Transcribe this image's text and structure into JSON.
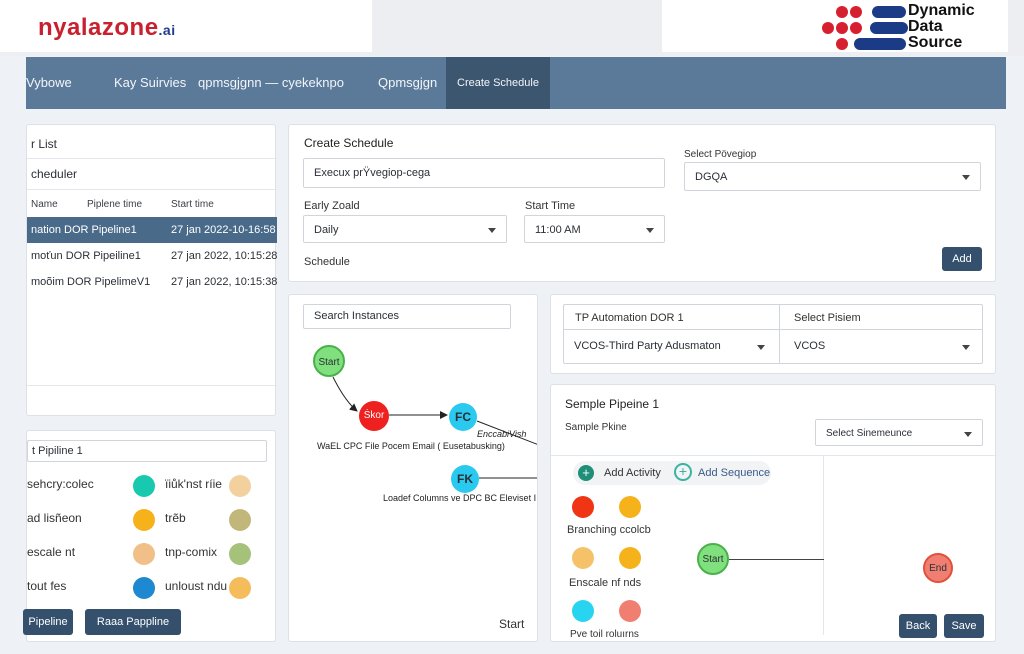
{
  "brand": {
    "name": "nyalazone",
    "tld": ".ai",
    "partner_words": [
      "Dynamic",
      "Data",
      "Source"
    ]
  },
  "nav": {
    "items": [
      "Vybowe",
      "Kay Suirvies",
      "qpmsgjgnn — cyekeknpo",
      "Qpmsgjgn",
      "Create Schedule"
    ]
  },
  "list_panel": {
    "title": "r List",
    "subtitle": "cheduler",
    "columns": [
      "Name",
      "Piplene time",
      "Start time"
    ],
    "rows": [
      {
        "name": "nation DOR Pipeline1",
        "time": "27 jan 2022-10-16:58",
        "selected": true
      },
      {
        "name": "moťun DOR Pipeiline1",
        "time": "27 jan 2022, 10:15:28",
        "selected": false
      },
      {
        "name": "moõim DOR PipelimeV1",
        "time": "27 jan 2022, 10:15:38",
        "selected": false
      }
    ]
  },
  "create_schedule": {
    "title": "Create Schedule",
    "name_value": "Execux prŸvegiop-cega",
    "select_label": "Select Pövegiop",
    "select_value": "DGQA",
    "freq_label": "Early Zoald",
    "freq_value": "Daily",
    "time_label": "Start Time",
    "time_value": "11:00 AM",
    "schedule_label": "Schedule",
    "add_label": "Add"
  },
  "pipeline_panel": {
    "input_value": "t Pipiline 1",
    "items_left": [
      "sehcry:colec",
      "ad lisñeon",
      "escale nt",
      "tout fes"
    ],
    "items_right": [
      "ïiůk'nst ríie",
      "trẽb",
      "tnp-comix",
      "unloust ndu"
    ],
    "dot_colors": [
      [
        "#18c9b0",
        "#f2d19e"
      ],
      [
        "#f5b21b",
        "#c2b77b"
      ],
      [
        "#f0c088",
        "#a6c27a"
      ],
      [
        "#1e88d0",
        "#f5bc5b"
      ]
    ],
    "btn1": "Pipeline",
    "btn2": "Raaa Pappline"
  },
  "instances": {
    "search_placeholder": "Search Instances",
    "nodes": {
      "start": "Start",
      "red": "Ṡkor",
      "fc": "FC",
      "fk": "FK"
    },
    "edge_label": "EnccabiVish",
    "label1": "WaEL CPC File Pocem Email ( Eusetabusking)",
    "label2": "Loadef Columns ve DPC BC Eleviset I P",
    "footer": "Start"
  },
  "automation": {
    "field1": "TP Automation DOR 1",
    "field2_label": "Select Pisiem",
    "select1": "VCOS-Third Party Adusmaton",
    "select2": "VCOS"
  },
  "sample": {
    "title": "Semple Pipeine 1",
    "sublabel": "Sample Pkine",
    "select": "Select Sinemeunce",
    "add_activity": "Add Activity",
    "add_sequence": "Add Sequence",
    "palette_labels": [
      "Branching ccolcb",
      "Enscale nf   nds",
      "Pve toil roluırns"
    ],
    "start": "Start",
    "end": "End",
    "back": "Back",
    "save": "Save"
  }
}
